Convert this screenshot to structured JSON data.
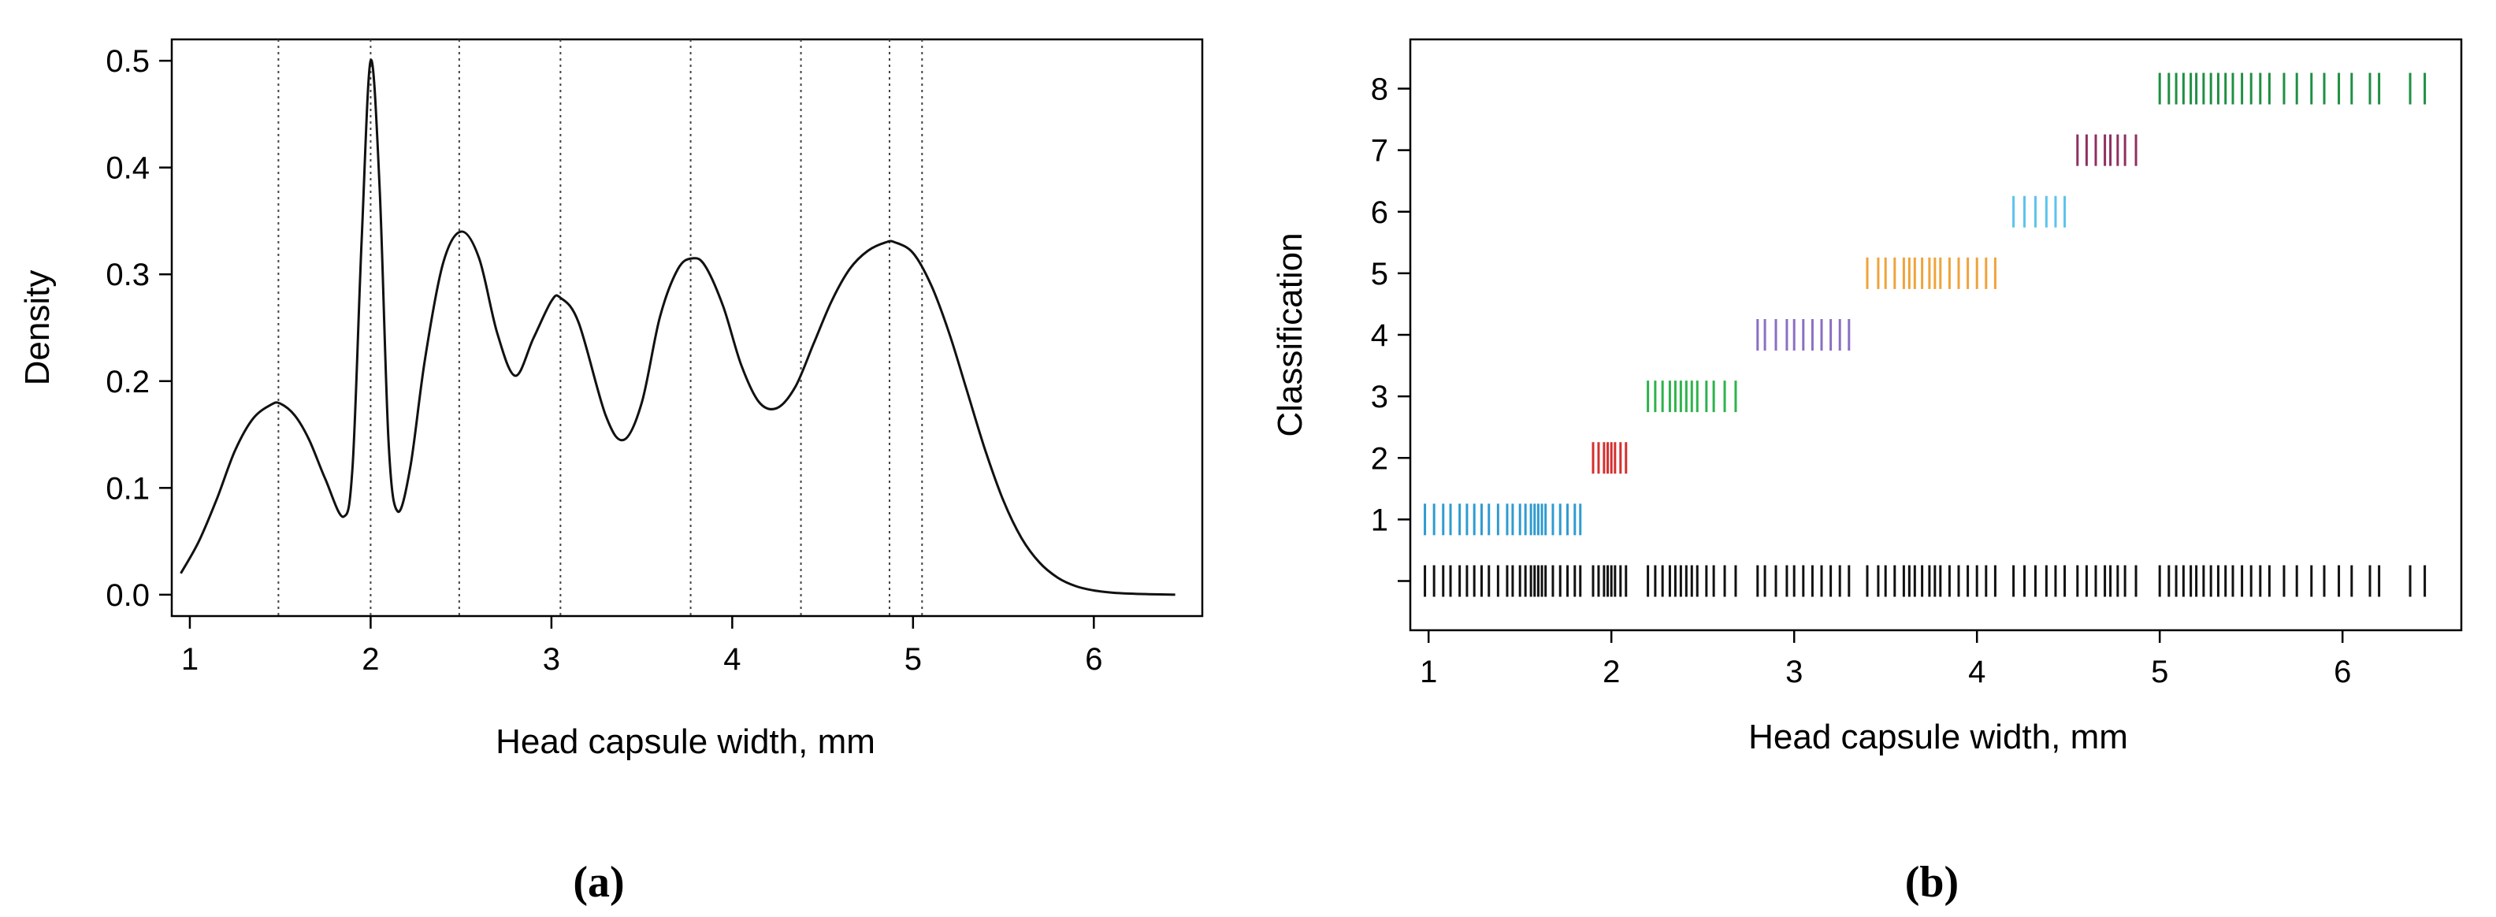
{
  "chart_data": [
    {
      "panel_label": "(a)",
      "type": "line",
      "xlabel": "Head capsule width, mm",
      "ylabel": "Density",
      "xlim": [
        0.9,
        6.6
      ],
      "ylim": [
        -0.02,
        0.52
      ],
      "xticks": [
        1,
        2,
        3,
        4,
        5,
        6
      ],
      "yticks": [
        0.0,
        0.1,
        0.2,
        0.3,
        0.4,
        0.5
      ],
      "ytick_labels": [
        "0.0",
        "0.1",
        "0.2",
        "0.3",
        "0.4",
        "0.5"
      ],
      "vlines": [
        1.49,
        2.0,
        2.49,
        3.05,
        3.77,
        4.38,
        4.87,
        5.05
      ],
      "series": [
        {
          "name": "density",
          "x": [
            0.95,
            1.05,
            1.15,
            1.25,
            1.35,
            1.45,
            1.5,
            1.58,
            1.66,
            1.75,
            1.85,
            1.9,
            1.95,
            2.0,
            2.05,
            2.1,
            2.15,
            2.22,
            2.3,
            2.4,
            2.5,
            2.6,
            2.7,
            2.8,
            2.9,
            3.0,
            3.05,
            3.15,
            3.3,
            3.4,
            3.5,
            3.6,
            3.7,
            3.78,
            3.85,
            3.95,
            4.05,
            4.15,
            4.25,
            4.35,
            4.45,
            4.55,
            4.65,
            4.75,
            4.85,
            4.9,
            5.0,
            5.1,
            5.2,
            5.3,
            5.4,
            5.5,
            5.6,
            5.7,
            5.8,
            5.9,
            6.0,
            6.1,
            6.2,
            6.3,
            6.45
          ],
          "y": [
            0.02,
            0.05,
            0.09,
            0.135,
            0.165,
            0.178,
            0.179,
            0.168,
            0.145,
            0.108,
            0.073,
            0.12,
            0.33,
            0.5,
            0.38,
            0.14,
            0.078,
            0.12,
            0.22,
            0.31,
            0.34,
            0.315,
            0.245,
            0.205,
            0.24,
            0.275,
            0.278,
            0.255,
            0.168,
            0.145,
            0.18,
            0.26,
            0.305,
            0.315,
            0.308,
            0.27,
            0.215,
            0.18,
            0.175,
            0.195,
            0.235,
            0.275,
            0.305,
            0.322,
            0.33,
            0.33,
            0.32,
            0.29,
            0.245,
            0.19,
            0.135,
            0.088,
            0.053,
            0.03,
            0.016,
            0.008,
            0.004,
            0.002,
            0.001,
            0.0005,
            0.0
          ]
        }
      ]
    },
    {
      "panel_label": "(b)",
      "type": "scatter",
      "marker": "vertical-tick",
      "xlabel": "Head capsule width, mm",
      "ylabel": "Classification",
      "xlim": [
        0.9,
        6.65
      ],
      "ylim": [
        -0.8,
        8.8
      ],
      "xticks": [
        1,
        2,
        3,
        4,
        5,
        6
      ],
      "yticks": [
        1,
        2,
        3,
        4,
        5,
        6,
        7,
        8
      ],
      "extra_ytick_at": 0,
      "series": [
        {
          "name": "1",
          "row": 1,
          "color": "#2e9bd0",
          "x": [
            0.98,
            1.03,
            1.08,
            1.12,
            1.17,
            1.21,
            1.25,
            1.29,
            1.33,
            1.38,
            1.43,
            1.46,
            1.5,
            1.53,
            1.56,
            1.58,
            1.6,
            1.62,
            1.64,
            1.68,
            1.72,
            1.76,
            1.8,
            1.83
          ]
        },
        {
          "name": "2",
          "row": 2,
          "color": "#d62f2f",
          "x": [
            1.9,
            1.93,
            1.96,
            1.98,
            2.0,
            2.02,
            2.05,
            2.08
          ]
        },
        {
          "name": "3",
          "row": 3,
          "color": "#2db34a",
          "x": [
            2.2,
            2.24,
            2.28,
            2.32,
            2.35,
            2.38,
            2.41,
            2.44,
            2.47,
            2.52,
            2.56,
            2.62,
            2.68
          ]
        },
        {
          "name": "4",
          "row": 4,
          "color": "#8a6fc4",
          "x": [
            2.8,
            2.84,
            2.9,
            2.96,
            3.0,
            3.05,
            3.1,
            3.15,
            3.2,
            3.25,
            3.3
          ]
        },
        {
          "name": "5",
          "row": 5,
          "color": "#f0a33a",
          "x": [
            3.4,
            3.46,
            3.5,
            3.55,
            3.6,
            3.63,
            3.66,
            3.7,
            3.74,
            3.77,
            3.8,
            3.85,
            3.9,
            3.95,
            4.0,
            4.05,
            4.1
          ]
        },
        {
          "name": "6",
          "row": 6,
          "color": "#5cc3ec",
          "x": [
            4.2,
            4.26,
            4.32,
            4.38,
            4.43,
            4.48
          ]
        },
        {
          "name": "7",
          "row": 7,
          "color": "#8e3060",
          "x": [
            4.55,
            4.6,
            4.65,
            4.7,
            4.73,
            4.77,
            4.81,
            4.87
          ]
        },
        {
          "name": "8",
          "row": 8,
          "color": "#1f8f43",
          "x": [
            5.0,
            5.05,
            5.09,
            5.13,
            5.17,
            5.2,
            5.24,
            5.28,
            5.32,
            5.36,
            5.4,
            5.45,
            5.5,
            5.55,
            5.6,
            5.68,
            5.75,
            5.83,
            5.9,
            5.98,
            6.05,
            6.15,
            6.2,
            6.37,
            6.45
          ]
        },
        {
          "name": "all",
          "row": 0,
          "color": "#111111",
          "x": [
            0.98,
            1.03,
            1.08,
            1.12,
            1.17,
            1.21,
            1.25,
            1.29,
            1.33,
            1.38,
            1.43,
            1.46,
            1.5,
            1.53,
            1.56,
            1.58,
            1.6,
            1.62,
            1.64,
            1.68,
            1.72,
            1.76,
            1.8,
            1.83,
            1.9,
            1.93,
            1.96,
            1.98,
            2.0,
            2.02,
            2.05,
            2.08,
            2.2,
            2.24,
            2.28,
            2.32,
            2.35,
            2.38,
            2.41,
            2.44,
            2.47,
            2.52,
            2.56,
            2.62,
            2.68,
            2.8,
            2.84,
            2.9,
            2.96,
            3.0,
            3.05,
            3.1,
            3.15,
            3.2,
            3.25,
            3.3,
            3.4,
            3.46,
            3.5,
            3.55,
            3.6,
            3.63,
            3.66,
            3.7,
            3.74,
            3.77,
            3.8,
            3.85,
            3.9,
            3.95,
            4.0,
            4.05,
            4.1,
            4.2,
            4.26,
            4.32,
            4.38,
            4.43,
            4.48,
            4.55,
            4.6,
            4.65,
            4.7,
            4.73,
            4.77,
            4.81,
            4.87,
            5.0,
            5.05,
            5.09,
            5.13,
            5.17,
            5.2,
            5.24,
            5.28,
            5.32,
            5.36,
            5.4,
            5.45,
            5.5,
            5.55,
            5.6,
            5.68,
            5.75,
            5.83,
            5.9,
            5.98,
            6.05,
            6.15,
            6.2,
            6.37,
            6.45
          ]
        }
      ]
    }
  ]
}
